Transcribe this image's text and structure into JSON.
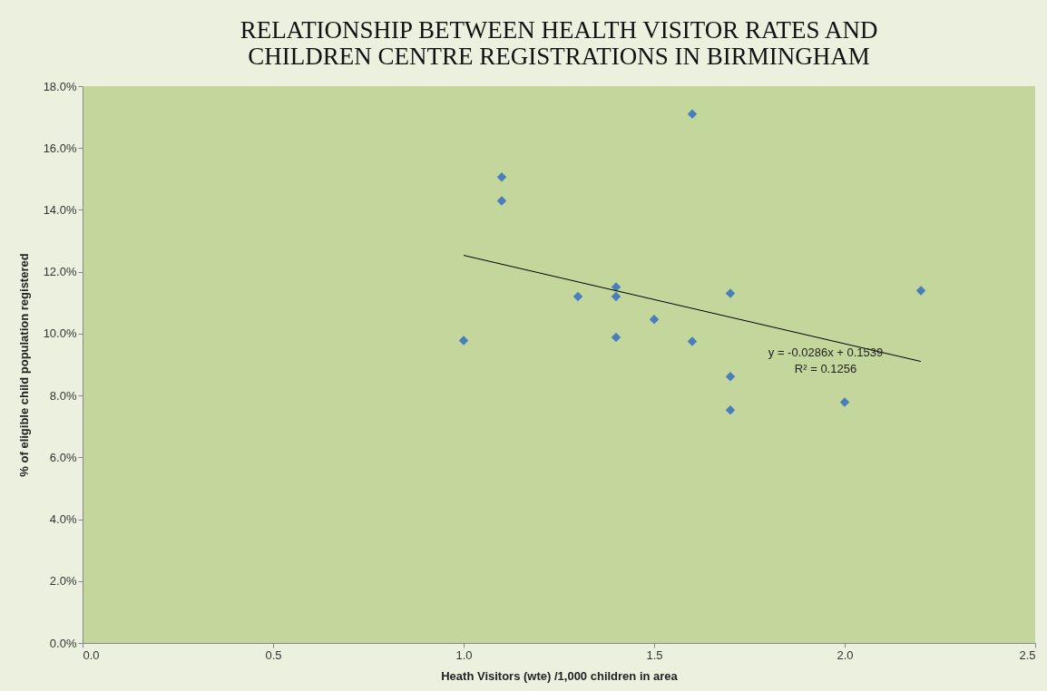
{
  "chart_data": {
    "type": "scatter",
    "title": "RELATIONSHIP BETWEEN HEALTH VISITOR RATES AND\nCHILDREN CENTRE REGISTRATIONS IN BIRMINGHAM",
    "xlabel": "Heath Visitors  (wte) /1,000 children in area",
    "ylabel": "% of eligible child population registered",
    "series": [
      {
        "color": "#4a7ebb",
        "marker": "diamond",
        "x": [
          1.0,
          1.1,
          1.1,
          1.3,
          1.4,
          1.4,
          1.4,
          1.5,
          1.6,
          1.6,
          1.7,
          1.7,
          1.7,
          2.0,
          2.2
        ],
        "values": [
          9.78,
          15.06,
          14.29,
          11.2,
          11.51,
          11.2,
          9.88,
          10.46,
          17.1,
          9.75,
          11.3,
          8.61,
          7.53,
          7.78,
          11.39
        ]
      },
      {
        "type": "line",
        "color": "#000000",
        "line_style": "solid",
        "x": [
          1.0,
          2.2
        ],
        "values": [
          12.53,
          9.1
        ]
      }
    ],
    "annotations": [
      "y = -0.0286x + 0.1539",
      "R² = 0.1256"
    ],
    "xlim": [
      0,
      2.5
    ],
    "xticks": [
      {
        "value": 0,
        "label": "0.0"
      },
      0.5,
      {
        "value": 1,
        "label": "1.0"
      },
      1.5,
      {
        "value": 2,
        "label": "2.0"
      },
      2.5
    ],
    "ylim": [
      0,
      18
    ],
    "yticks": [
      {
        "value": 0,
        "label": "0.0%"
      },
      {
        "value": 2,
        "label": "2.0%"
      },
      {
        "value": 4,
        "label": "4.0%"
      },
      {
        "value": 6,
        "label": "6.0%"
      },
      {
        "value": 8,
        "label": "8.0%"
      },
      {
        "value": 10,
        "label": "10.0%"
      },
      {
        "value": 12,
        "label": "12.0%"
      },
      {
        "value": 14,
        "label": "14.0%"
      },
      {
        "value": 16,
        "label": "16.0%"
      },
      {
        "value": 18,
        "label": "18.0%"
      }
    ],
    "grid": false,
    "legend": false
  }
}
